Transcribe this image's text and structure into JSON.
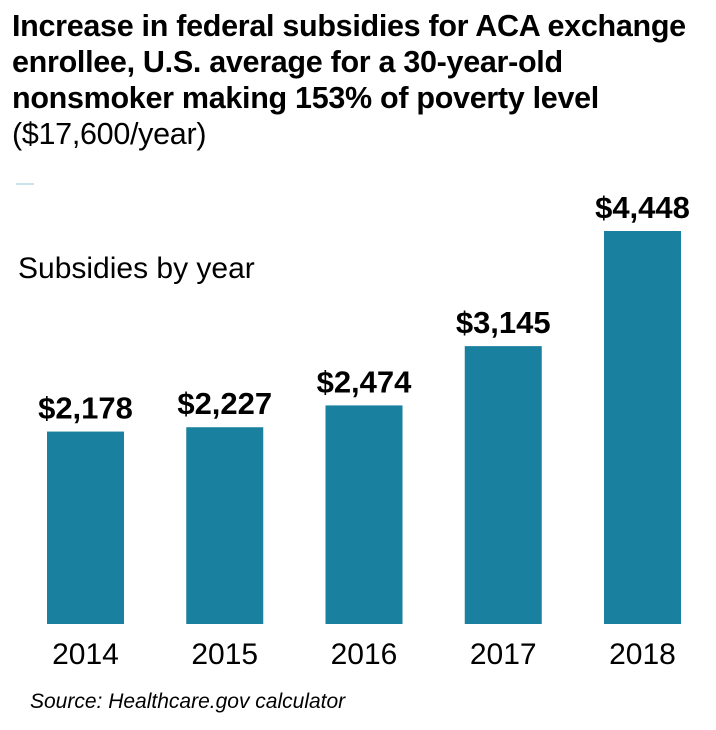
{
  "chart_data": {
    "type": "bar",
    "title": "Increase in federal subsidies for ACA exchange enrollee, U.S. average for a 30-year-old nonsmoker making 153% of poverty level",
    "title_bold": "Increase in federal subsidies for ACA exchange enrollee, U.S. average for a 30-year-old nonsmoker making 153% of poverty level",
    "title_suffix": "($17,600/year)",
    "subtitle": "Subsidies by year",
    "categories": [
      "2014",
      "2015",
      "2016",
      "2017",
      "2018"
    ],
    "values": [
      2178,
      2227,
      2474,
      3145,
      4448
    ],
    "data_labels": [
      "$2,178",
      "$2,227",
      "$2,474",
      "$3,145",
      "$4,448"
    ],
    "ylim": [
      0,
      4448
    ],
    "grid": false,
    "bar_color": "#1a80a0",
    "source": "Source: Healthcare.gov calculator"
  }
}
